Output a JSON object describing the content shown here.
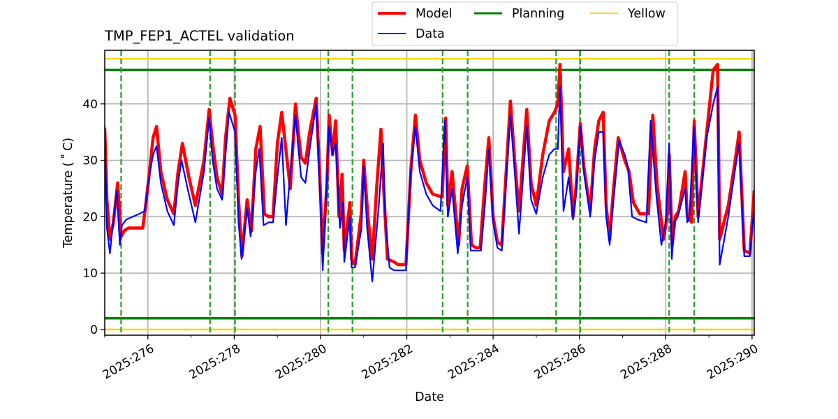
{
  "chart_data": {
    "type": "line",
    "title": "TMP_FEP1_ACTEL validation",
    "xlabel": "Date",
    "ylabel": "Temperature ($^\\circ$C)",
    "ylabel_display": "Temperature ( ˚ C)",
    "xlim": [
      275.0,
      290.05
    ],
    "ylim": [
      -1,
      49.5
    ],
    "grid": true,
    "legend_position": "upper center, outside plot",
    "xticks": [
      276,
      278,
      280,
      282,
      284,
      286,
      288,
      290
    ],
    "xtick_labels": [
      "2025:276",
      "2025:278",
      "2025:280",
      "2025:282",
      "2025:284",
      "2025:286",
      "2025:288",
      "2025:290"
    ],
    "yticks": [
      0,
      10,
      20,
      30,
      40
    ],
    "ytick_labels": [
      "0",
      "10",
      "20",
      "30",
      "40"
    ],
    "hlines": [
      {
        "name": "Planning",
        "y": 46.0,
        "color": "#008000"
      },
      {
        "name": "Planning",
        "y": 2.0,
        "color": "#008000"
      },
      {
        "name": "Yellow",
        "y": 48.0,
        "color": "#ffd700"
      },
      {
        "name": "Yellow",
        "y": 0.0,
        "color": "#ffd700"
      }
    ],
    "vlines": {
      "color": "#2ca02c",
      "style": "dashed",
      "x": [
        275.38,
        277.44,
        278.02,
        280.18,
        280.74,
        282.83,
        283.41,
        285.46,
        286.02,
        288.08,
        288.66
      ]
    },
    "legend": [
      {
        "label": "Model",
        "color": "#ff0000",
        "width": 4
      },
      {
        "label": "Data",
        "color": "#0000ff",
        "width": 2
      },
      {
        "label": "Planning",
        "color": "#008000",
        "width": 3
      },
      {
        "label": "Yellow",
        "color": "#ffd700",
        "width": 2
      }
    ],
    "series": [
      {
        "name": "Model",
        "color": "#ff0000",
        "width": 4.5,
        "x": [
          275.0,
          275.05,
          275.12,
          275.2,
          275.3,
          275.38,
          275.45,
          275.55,
          275.7,
          275.88,
          275.95,
          276.05,
          276.12,
          276.2,
          276.3,
          276.45,
          276.6,
          276.7,
          276.8,
          276.95,
          277.1,
          277.3,
          277.42,
          277.5,
          277.6,
          277.72,
          277.8,
          277.9,
          278.02,
          278.1,
          278.18,
          278.3,
          278.4,
          278.5,
          278.6,
          278.7,
          278.8,
          278.9,
          279.0,
          279.1,
          279.3,
          279.42,
          279.5,
          279.55,
          279.65,
          279.75,
          279.9,
          280.0,
          280.05,
          280.15,
          280.2,
          280.28,
          280.35,
          280.43,
          280.5,
          280.55,
          280.68,
          280.72,
          280.8,
          280.95,
          281.0,
          281.1,
          281.2,
          281.3,
          281.4,
          281.47,
          281.55,
          281.7,
          281.8,
          281.88,
          281.98,
          282.1,
          282.2,
          282.3,
          282.45,
          282.6,
          282.82,
          282.9,
          282.95,
          283.05,
          283.2,
          283.28,
          283.4,
          283.5,
          283.6,
          283.7,
          283.8,
          283.9,
          284.0,
          284.1,
          284.2,
          284.4,
          284.5,
          284.6,
          284.78,
          284.88,
          285.0,
          285.15,
          285.3,
          285.42,
          285.5,
          285.55,
          285.63,
          285.75,
          285.85,
          285.92,
          286.02,
          286.1,
          286.25,
          286.35,
          286.45,
          286.55,
          286.62,
          286.7,
          286.78,
          286.9,
          287.05,
          287.15,
          287.25,
          287.4,
          287.6,
          287.7,
          287.8,
          287.95,
          288.05,
          288.08,
          288.15,
          288.22,
          288.3,
          288.45,
          288.5,
          288.6,
          288.66,
          288.75,
          288.95,
          289.1,
          289.2,
          289.25,
          289.45,
          289.6,
          289.7,
          289.82,
          289.95,
          290.05
        ],
        "y": [
          35.5,
          23.0,
          16.0,
          19.0,
          26.0,
          16.5,
          17.5,
          18.0,
          18.0,
          18.0,
          22.0,
          29.0,
          34.0,
          36.0,
          28.0,
          23.0,
          20.5,
          28.0,
          33.0,
          27.0,
          22.0,
          30.0,
          39.0,
          33.0,
          27.0,
          24.0,
          34.0,
          41.0,
          38.0,
          23.0,
          13.0,
          23.0,
          17.5,
          32.0,
          36.0,
          20.5,
          20.0,
          20.0,
          33.0,
          38.5,
          25.0,
          40.0,
          34.0,
          30.5,
          29.5,
          35.0,
          41.0,
          24.0,
          13.5,
          26.0,
          38.0,
          31.0,
          37.0,
          20.0,
          27.5,
          14.0,
          22.5,
          12.5,
          11.5,
          21.0,
          30.0,
          20.0,
          12.5,
          25.0,
          35.5,
          24.0,
          12.5,
          12.0,
          11.5,
          11.5,
          11.5,
          29.0,
          38.0,
          30.0,
          26.0,
          24.0,
          23.5,
          37.5,
          22.0,
          28.0,
          15.0,
          25.0,
          29.0,
          15.0,
          14.5,
          14.5,
          25.0,
          34.0,
          20.0,
          15.5,
          15.0,
          40.5,
          30.0,
          21.0,
          39.0,
          26.0,
          22.0,
          31.0,
          37.0,
          38.5,
          40.0,
          47.0,
          28.0,
          32.0,
          20.0,
          25.0,
          36.5,
          29.0,
          21.0,
          32.0,
          37.0,
          38.5,
          22.0,
          16.0,
          24.0,
          34.0,
          30.0,
          28.0,
          22.5,
          20.5,
          20.5,
          38.0,
          25.5,
          16.0,
          21.0,
          31.0,
          15.0,
          20.0,
          21.0,
          28.0,
          20.0,
          19.0,
          37.0,
          20.0,
          35.0,
          46.0,
          47.0,
          16.0,
          22.0,
          29.5,
          35.0,
          14.0,
          13.5,
          24.5
        ]
      },
      {
        "name": "Data",
        "color": "#0000ff",
        "width": 2.2,
        "x": [
          275.0,
          275.05,
          275.12,
          275.18,
          275.28,
          275.35,
          275.4,
          275.5,
          275.65,
          275.8,
          275.92,
          276.05,
          276.12,
          276.2,
          276.3,
          276.45,
          276.6,
          276.7,
          276.78,
          276.92,
          277.1,
          277.3,
          277.42,
          277.5,
          277.6,
          277.72,
          277.8,
          277.88,
          278.02,
          278.1,
          278.17,
          278.3,
          278.38,
          278.5,
          278.58,
          278.68,
          278.8,
          278.9,
          279.0,
          279.1,
          279.2,
          279.3,
          279.42,
          279.5,
          279.55,
          279.65,
          279.75,
          279.9,
          280.0,
          280.05,
          280.12,
          280.2,
          280.28,
          280.35,
          280.45,
          280.52,
          280.55,
          280.68,
          280.72,
          280.8,
          280.95,
          281.0,
          281.08,
          281.2,
          281.35,
          281.45,
          281.5,
          281.6,
          281.7,
          281.85,
          281.98,
          282.08,
          282.2,
          282.3,
          282.45,
          282.6,
          282.78,
          282.88,
          282.95,
          283.05,
          283.18,
          283.28,
          283.4,
          283.48,
          283.6,
          283.72,
          283.82,
          283.9,
          284.0,
          284.1,
          284.2,
          284.4,
          284.5,
          284.6,
          284.78,
          284.88,
          285.0,
          285.15,
          285.3,
          285.42,
          285.5,
          285.55,
          285.63,
          285.75,
          285.85,
          285.92,
          286.02,
          286.1,
          286.25,
          286.35,
          286.45,
          286.55,
          286.62,
          286.7,
          286.78,
          286.92,
          287.05,
          287.12,
          287.22,
          287.35,
          287.55,
          287.65,
          287.78,
          287.9,
          288.0,
          288.08,
          288.14,
          288.2,
          288.28,
          288.45,
          288.5,
          288.55,
          288.65,
          288.75,
          288.95,
          289.1,
          289.2,
          289.25,
          289.45,
          289.6,
          289.7,
          289.82,
          289.95,
          290.05
        ],
        "y": [
          36.0,
          18.0,
          13.5,
          18.0,
          24.5,
          15.0,
          18.5,
          19.5,
          20.0,
          20.5,
          21.0,
          28.0,
          31.0,
          32.5,
          26.0,
          21.0,
          18.5,
          26.0,
          30.0,
          25.0,
          19.0,
          28.0,
          37.5,
          30.0,
          25.0,
          23.0,
          31.0,
          38.5,
          35.0,
          19.0,
          12.5,
          21.5,
          16.5,
          28.0,
          32.0,
          18.5,
          19.0,
          19.0,
          27.0,
          34.0,
          18.5,
          28.0,
          38.0,
          31.0,
          27.0,
          26.0,
          32.0,
          40.0,
          22.0,
          10.5,
          22.0,
          36.0,
          31.0,
          33.0,
          18.0,
          22.5,
          12.0,
          20.0,
          11.0,
          11.0,
          18.0,
          29.0,
          18.0,
          8.5,
          22.0,
          33.0,
          20.0,
          11.0,
          10.5,
          10.5,
          10.5,
          27.0,
          36.0,
          28.0,
          24.0,
          22.0,
          21.0,
          37.0,
          20.0,
          25.0,
          13.5,
          22.0,
          27.0,
          14.0,
          14.0,
          14.0,
          23.0,
          32.0,
          19.0,
          14.5,
          14.0,
          38.0,
          28.0,
          17.0,
          36.0,
          23.0,
          20.5,
          27.0,
          31.0,
          32.0,
          32.0,
          43.0,
          21.0,
          27.0,
          19.5,
          24.0,
          36.0,
          28.0,
          20.0,
          30.0,
          35.0,
          35.0,
          20.0,
          15.0,
          22.0,
          33.5,
          31.0,
          29.0,
          20.0,
          19.5,
          19.0,
          37.0,
          24.0,
          15.0,
          19.0,
          33.0,
          12.5,
          19.0,
          20.0,
          25.0,
          19.0,
          20.0,
          36.0,
          19.0,
          34.0,
          40.0,
          43.0,
          11.5,
          20.0,
          28.0,
          33.0,
          13.0,
          13.0,
          22.0
        ]
      }
    ]
  }
}
